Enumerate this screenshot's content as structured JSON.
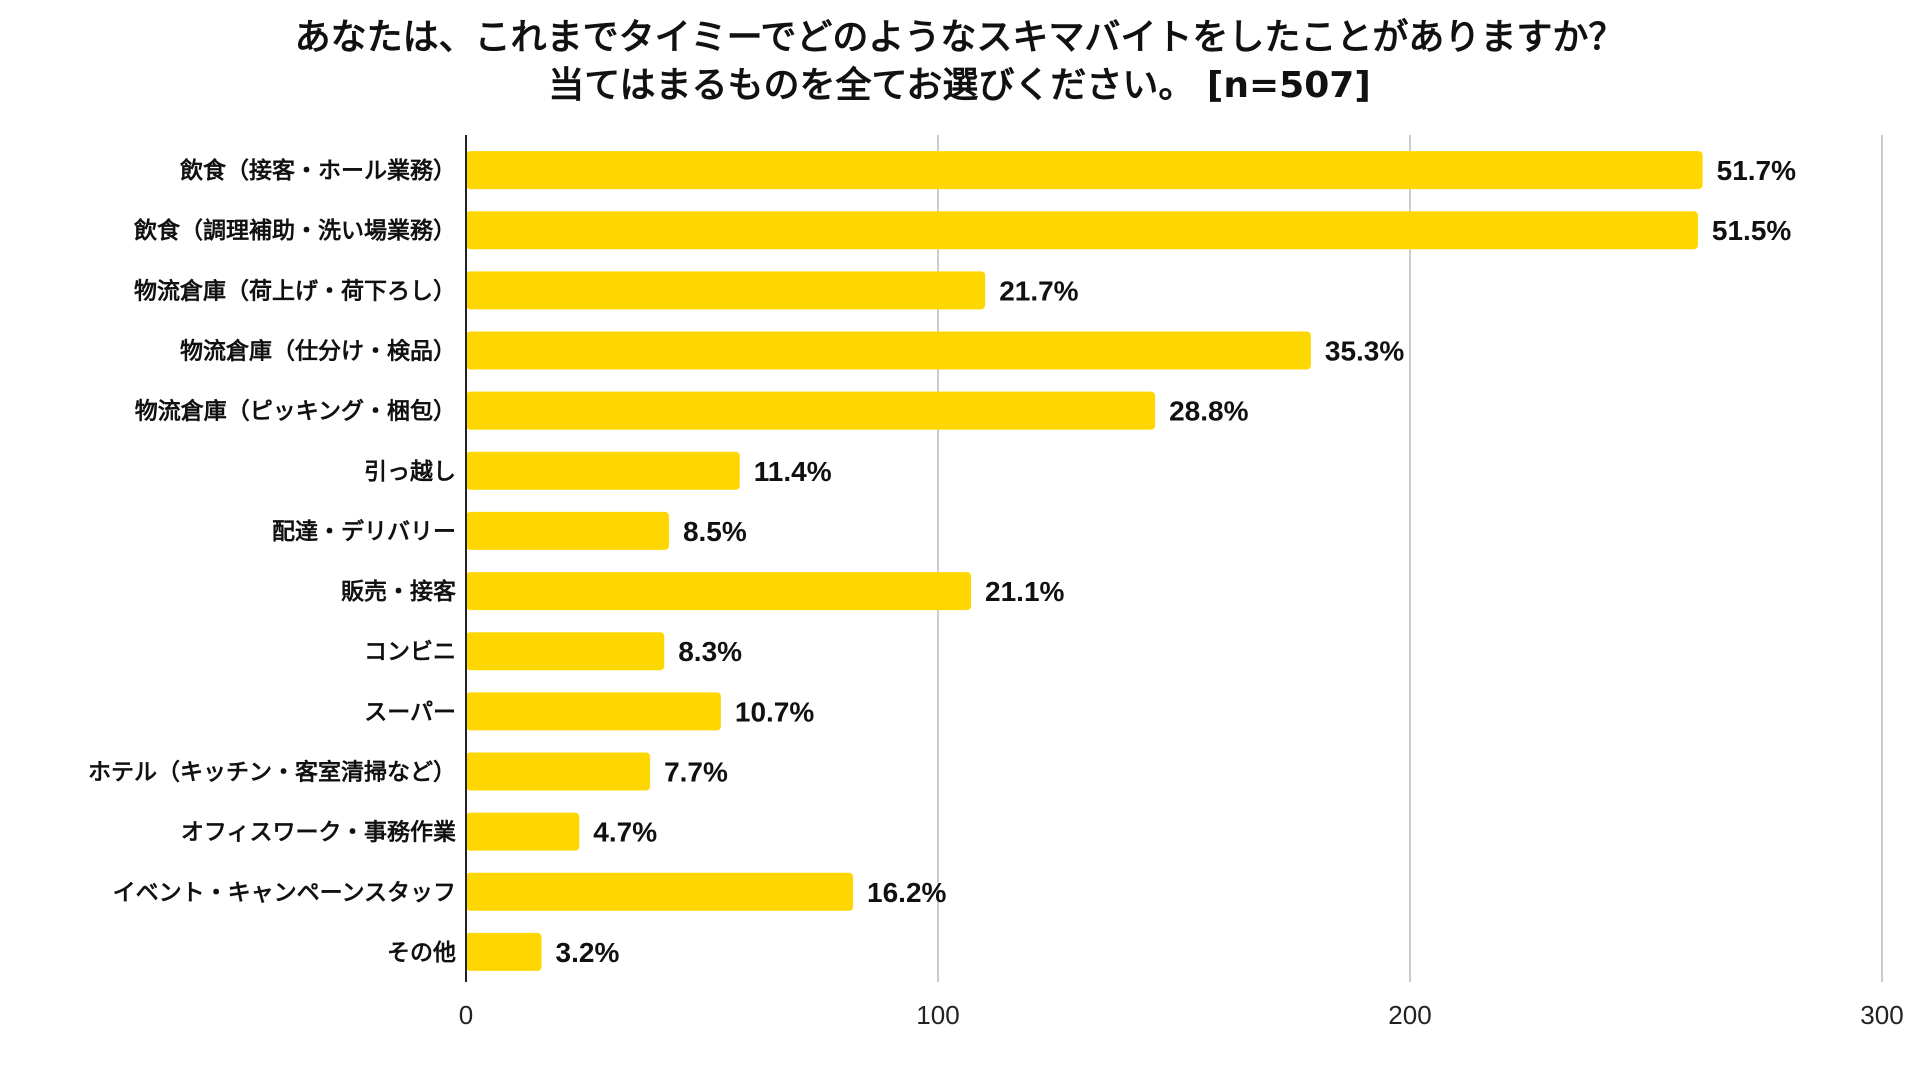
{
  "chart_data": {
    "type": "bar",
    "orientation": "horizontal",
    "title": [
      "あなたは、これまでタイミーでどのようなスキマバイトをしたことがありますか？",
      "当てはまるものを全てお選びください。 [n=507]"
    ],
    "categories": [
      "飲食（接客・ホール業務）",
      "飲食（調理補助・洗い場業務）",
      "物流倉庫（荷上げ・荷下ろし）",
      "物流倉庫（仕分け・検品）",
      "物流倉庫（ピッキング・梱包）",
      "引っ越し",
      "配達・デリバリー",
      "販売・接客",
      "コンビニ",
      "スーパー",
      "ホテル（キッチン・客室清掃など）",
      "オフィスワーク・事務作業",
      "イベント・キャンペーンスタッフ",
      "その他"
    ],
    "values": [
      262,
      261,
      110,
      179,
      146,
      58,
      43,
      107,
      42,
      54,
      39,
      24,
      82,
      16
    ],
    "data_labels": [
      "51.7%",
      "51.5%",
      "21.7%",
      "35.3%",
      "28.8%",
      "11.4%",
      "8.5%",
      "21.1%",
      "8.3%",
      "10.7%",
      "7.7%",
      "4.7%",
      "16.2%",
      "3.2%"
    ],
    "xlim": [
      0,
      300
    ],
    "xticks": [
      0,
      100,
      200,
      300
    ],
    "xlabel": "",
    "ylabel": "",
    "grid": true,
    "legend": "none",
    "colors": {
      "bar": "#FFD700",
      "grid": "#cccccc",
      "axis": "#222222"
    }
  }
}
